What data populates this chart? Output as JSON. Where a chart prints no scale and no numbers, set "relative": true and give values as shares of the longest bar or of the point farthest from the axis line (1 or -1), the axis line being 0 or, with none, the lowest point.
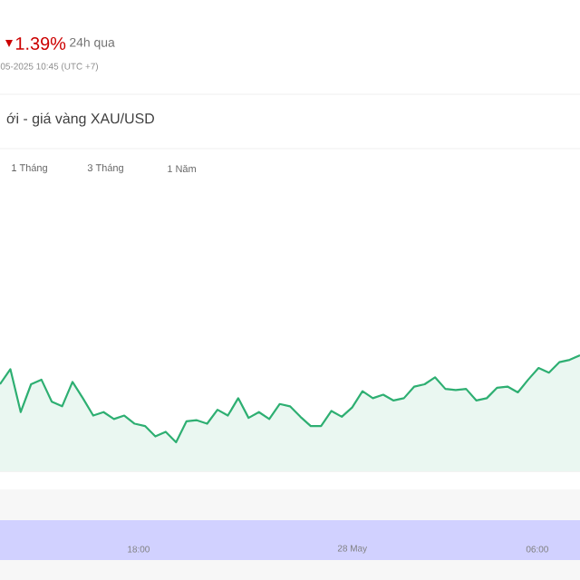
{
  "chart_data": {
    "type": "area",
    "title": "ới - giá vàng XAU/USD",
    "relative": true,
    "color": "#2eaf72",
    "categories": [
      null,
      null,
      null,
      null,
      null,
      null,
      null,
      null,
      null,
      null,
      null,
      null,
      null,
      null,
      null,
      null,
      null,
      null,
      null,
      null,
      null,
      null,
      null,
      null,
      null,
      null,
      null,
      null,
      null,
      null,
      null,
      null,
      null,
      null,
      null,
      null,
      null,
      null,
      null,
      null,
      null,
      null,
      null,
      null,
      null,
      null,
      null,
      null,
      null,
      null,
      null,
      null,
      null,
      null,
      null,
      null,
      null
    ],
    "values": [
      0.75,
      0.88,
      0.51,
      0.75,
      0.79,
      0.6,
      0.56,
      0.77,
      0.63,
      0.48,
      0.51,
      0.45,
      0.48,
      0.41,
      0.39,
      0.3,
      0.34,
      0.25,
      0.43,
      0.44,
      0.41,
      0.53,
      0.48,
      0.63,
      0.46,
      0.51,
      0.45,
      0.58,
      0.56,
      0.47,
      0.39,
      0.39,
      0.52,
      0.47,
      0.55,
      0.69,
      0.63,
      0.66,
      0.61,
      0.63,
      0.73,
      0.75,
      0.81,
      0.71,
      0.7,
      0.71,
      0.61,
      0.63,
      0.72,
      0.73,
      0.68,
      0.79,
      0.89,
      0.85,
      0.94,
      0.96,
      1.0
    ],
    "annotations": [
      "1.39%",
      "24h qua",
      "05-2025 10:45 (UTC +7)",
      "1 Tháng",
      "3 Tháng",
      "1 Năm",
      "18:00",
      "28 May",
      "06:00"
    ]
  }
}
